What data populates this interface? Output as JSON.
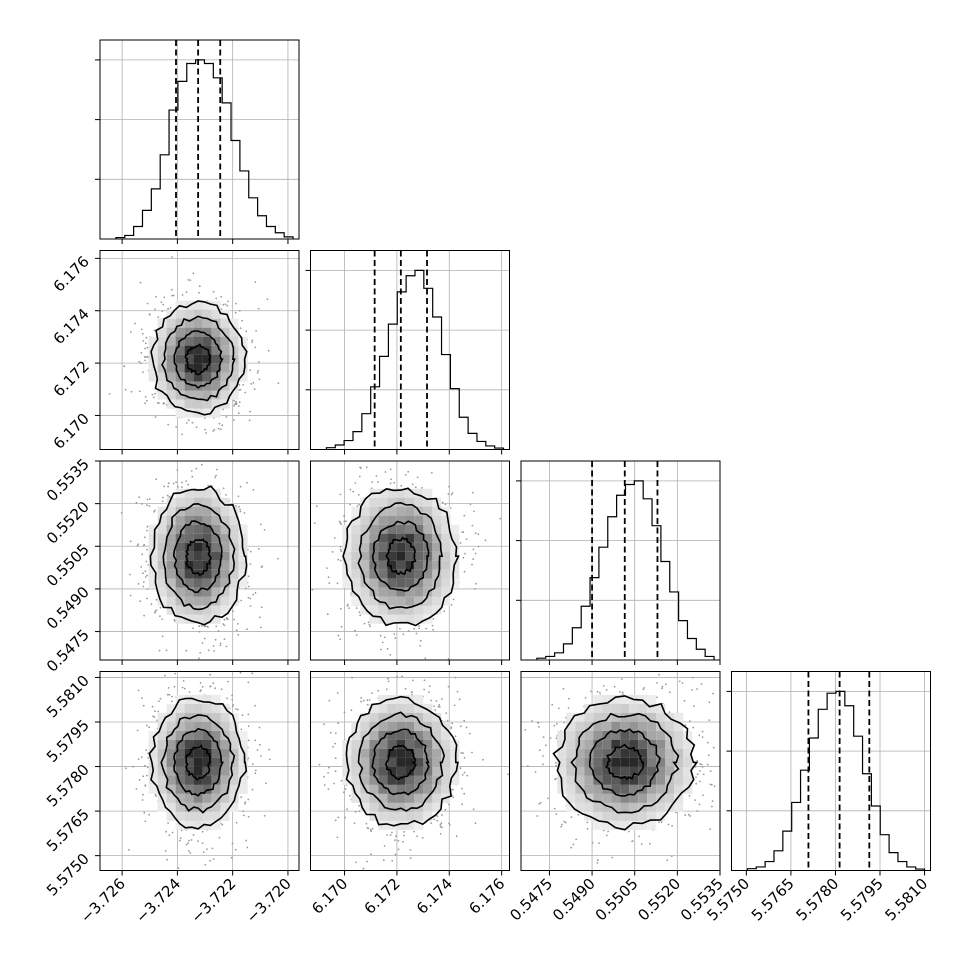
{
  "chart_data": {
    "type": "corner",
    "title": "",
    "grid": true,
    "parameters": [
      {
        "range": [
          -3.7268,
          -3.7196
        ],
        "ticks": [
          -3.726,
          -3.724,
          -3.722,
          -3.72
        ],
        "tick_labels": [
          "−3.726",
          "−3.724",
          "−3.722",
          "−3.720"
        ],
        "quantiles": [
          -3.72405,
          -3.72325,
          -3.72245
        ],
        "histogram": [
          0.008,
          0.02,
          0.07,
          0.16,
          0.28,
          0.47,
          0.72,
          0.88,
          0.98,
          1.0,
          0.98,
          0.9,
          0.76,
          0.55,
          0.38,
          0.23,
          0.13,
          0.07,
          0.035,
          0.012
        ]
      },
      {
        "range": [
          6.1687,
          6.1763
        ],
        "ticks": [
          6.17,
          6.172,
          6.174,
          6.176
        ],
        "tick_labels": [
          "6.170",
          "6.172",
          "6.174",
          "6.176"
        ],
        "quantiles": [
          6.17115,
          6.17215,
          6.17315
        ],
        "histogram": [
          0.01,
          0.025,
          0.05,
          0.1,
          0.2,
          0.35,
          0.52,
          0.7,
          0.88,
          0.97,
          1.0,
          0.9,
          0.74,
          0.53,
          0.34,
          0.18,
          0.09,
          0.045,
          0.02,
          0.008
        ]
      },
      {
        "range": [
          0.5465,
          0.5535
        ],
        "ticks": [
          0.5475,
          0.549,
          0.5505,
          0.552,
          0.5535
        ],
        "tick_labels": [
          "0.5475",
          "0.5490",
          "0.5505",
          "0.5520",
          "0.5535"
        ],
        "quantiles": [
          0.549,
          0.55015,
          0.5513
        ],
        "histogram": [
          0.01,
          0.02,
          0.04,
          0.09,
          0.18,
          0.3,
          0.46,
          0.63,
          0.8,
          0.92,
          0.98,
          1.0,
          0.9,
          0.75,
          0.55,
          0.38,
          0.22,
          0.12,
          0.06,
          0.02
        ]
      },
      {
        "range": [
          5.5745,
          5.5812
        ],
        "ticks": [
          5.575,
          5.5765,
          5.578,
          5.5795,
          5.581
        ],
        "tick_labels": [
          "5.5750",
          "5.5765",
          "5.5780",
          "5.5795",
          "5.5810"
        ],
        "quantiles": [
          5.57709,
          5.57814,
          5.57914
        ],
        "histogram": [
          0.01,
          0.02,
          0.05,
          0.11,
          0.22,
          0.38,
          0.56,
          0.74,
          0.9,
          0.99,
          1.0,
          0.92,
          0.75,
          0.54,
          0.36,
          0.2,
          0.1,
          0.05,
          0.02,
          0.008
        ]
      }
    ],
    "contour_levels_sigma": [
      0.5,
      1.0,
      1.5,
      2.0
    ]
  }
}
